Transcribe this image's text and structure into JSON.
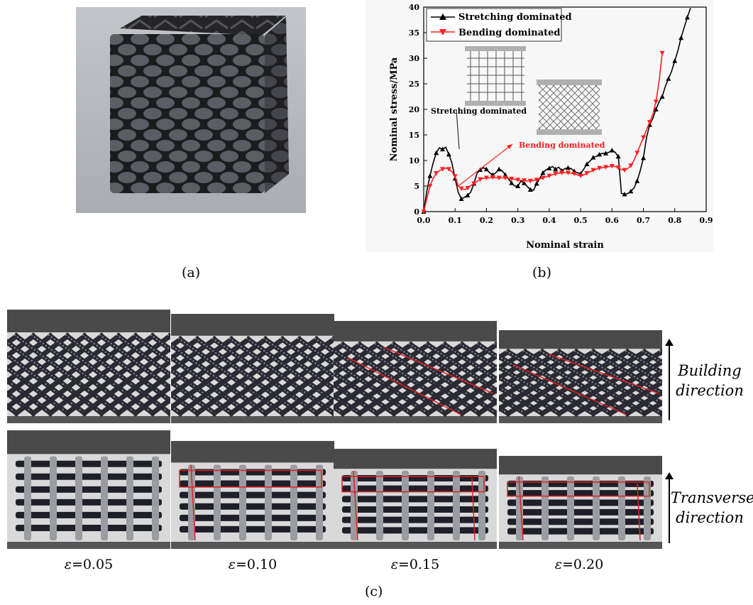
{
  "captions": {
    "a": "(a)",
    "b": "(b)",
    "c": "(c)"
  },
  "chart_data": {
    "type": "line",
    "xlabel": "Nominal strain",
    "ylabel": "Nominal stress/MPa",
    "xlim": [
      0.0,
      0.9
    ],
    "ylim": [
      0,
      40
    ],
    "xticks": [
      "0.0",
      "0.1",
      "0.2",
      "0.3",
      "0.4",
      "0.5",
      "0.6",
      "0.7",
      "0.8",
      "0.9"
    ],
    "yticks": [
      "0",
      "5",
      "10",
      "15",
      "20",
      "25",
      "30",
      "35",
      "40"
    ],
    "legend_position": "top-left",
    "annotations": [
      "Stretching dominated",
      "Bending dominated"
    ],
    "series": [
      {
        "name": "Stretching dominated",
        "color": "#000000",
        "marker": "triangle-up",
        "x": [
          0.0,
          0.01,
          0.02,
          0.03,
          0.04,
          0.05,
          0.06,
          0.07,
          0.08,
          0.09,
          0.1,
          0.11,
          0.12,
          0.13,
          0.14,
          0.15,
          0.16,
          0.17,
          0.18,
          0.19,
          0.2,
          0.21,
          0.22,
          0.23,
          0.24,
          0.25,
          0.26,
          0.27,
          0.28,
          0.29,
          0.3,
          0.31,
          0.32,
          0.33,
          0.34,
          0.35,
          0.36,
          0.37,
          0.38,
          0.39,
          0.4,
          0.41,
          0.42,
          0.43,
          0.44,
          0.45,
          0.46,
          0.47,
          0.48,
          0.49,
          0.5,
          0.51,
          0.52,
          0.53,
          0.54,
          0.55,
          0.56,
          0.57,
          0.58,
          0.59,
          0.6,
          0.61,
          0.62,
          0.63,
          0.64,
          0.65,
          0.66,
          0.67,
          0.68,
          0.69,
          0.7,
          0.71,
          0.72,
          0.73,
          0.74,
          0.75,
          0.76,
          0.77,
          0.78,
          0.79,
          0.8,
          0.81,
          0.82,
          0.83,
          0.84,
          0.85
        ],
        "y": [
          0,
          4,
          7,
          9.5,
          11.5,
          12.5,
          12.2,
          12.6,
          11.2,
          9.5,
          6.5,
          3.8,
          2.5,
          2.8,
          3.2,
          3.8,
          5.5,
          7.5,
          8.2,
          8.6,
          8.3,
          7.6,
          7.2,
          7.6,
          8.3,
          8.0,
          7.2,
          6.4,
          5.6,
          5.0,
          5.0,
          6.0,
          5.6,
          4.9,
          4.3,
          4.2,
          5.5,
          6.5,
          7.6,
          8.2,
          8.5,
          8.8,
          8.3,
          8.7,
          8.0,
          8.4,
          8.6,
          8.4,
          7.9,
          7.6,
          7.4,
          8.3,
          9.3,
          9.9,
          10.6,
          10.8,
          11.2,
          11.4,
          11.4,
          11.6,
          12.0,
          11.6,
          10.8,
          3.6,
          3.4,
          3.5,
          4.0,
          4.6,
          6.0,
          8.0,
          10.5,
          14.5,
          17.0,
          18.2,
          20.0,
          21.5,
          22.5,
          24.5,
          26.0,
          27.5,
          29.5,
          31.5,
          34.0,
          36.0,
          38.0,
          39.8
        ]
      },
      {
        "name": "Bending dominated",
        "color": "#ff2020",
        "marker": "triangle-down",
        "x": [
          0.0,
          0.01,
          0.02,
          0.03,
          0.04,
          0.05,
          0.06,
          0.07,
          0.08,
          0.09,
          0.1,
          0.11,
          0.12,
          0.13,
          0.14,
          0.15,
          0.16,
          0.17,
          0.18,
          0.19,
          0.2,
          0.21,
          0.22,
          0.23,
          0.24,
          0.25,
          0.26,
          0.27,
          0.28,
          0.29,
          0.3,
          0.31,
          0.32,
          0.33,
          0.34,
          0.35,
          0.36,
          0.37,
          0.38,
          0.39,
          0.4,
          0.41,
          0.42,
          0.43,
          0.44,
          0.45,
          0.46,
          0.47,
          0.48,
          0.49,
          0.5,
          0.51,
          0.52,
          0.53,
          0.54,
          0.55,
          0.56,
          0.57,
          0.58,
          0.59,
          0.6,
          0.61,
          0.62,
          0.63,
          0.64,
          0.65,
          0.66,
          0.67,
          0.68,
          0.69,
          0.7,
          0.71,
          0.72,
          0.73,
          0.74,
          0.75,
          0.76
        ],
        "y": [
          0,
          2.5,
          5,
          6.5,
          7.5,
          8.0,
          8.3,
          8.5,
          8.3,
          7.8,
          6.9,
          5.0,
          4.5,
          4.3,
          4.6,
          5.1,
          5.5,
          5.9,
          6.3,
          6.5,
          6.6,
          6.6,
          6.7,
          6.6,
          6.6,
          6.6,
          6.6,
          6.5,
          6.4,
          6.3,
          6.2,
          6.1,
          6.1,
          6.0,
          6.0,
          6.1,
          6.2,
          6.4,
          6.6,
          6.8,
          7.0,
          7.2,
          7.4,
          7.5,
          7.6,
          7.6,
          7.6,
          7.5,
          7.4,
          7.2,
          7.0,
          7.2,
          7.5,
          7.8,
          8.1,
          8.3,
          8.5,
          8.6,
          8.7,
          8.8,
          8.9,
          8.8,
          8.6,
          8.2,
          8.1,
          8.4,
          9.0,
          10.0,
          11.5,
          13.0,
          14.5,
          16.0,
          17.5,
          19.0,
          21.5,
          25.5,
          31.0
        ]
      }
    ]
  },
  "strain_labels": [
    {
      "sym": "ε",
      "val": "=0.05"
    },
    {
      "sym": "ε",
      "val": "=0.10"
    },
    {
      "sym": "ε",
      "val": "=0.15"
    },
    {
      "sym": "ε",
      "val": "=0.20"
    }
  ],
  "directions": {
    "building": [
      "Building",
      "direction"
    ],
    "transverse": [
      "Transverse",
      "direction"
    ]
  },
  "colors": {
    "stretch": "#000000",
    "bend": "#ff2020",
    "accent_red": "#e02020",
    "lattice": "#2a2a30",
    "background_photo": "#dcdcdc"
  }
}
